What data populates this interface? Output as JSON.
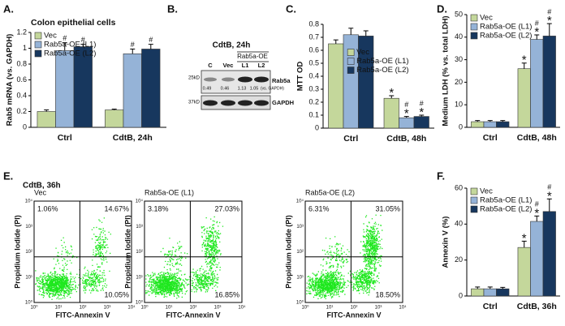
{
  "panel_labels": [
    "A.",
    "B.",
    "C.",
    "D.",
    "E.",
    "F."
  ],
  "chart_data": [
    {
      "type": "bar",
      "title": "Colon epithelial cells",
      "y_label": "Rab5 mRNA (vs. GAPDH)",
      "categories": [
        "Ctrl",
        "CdtB, 24h"
      ],
      "legend": "upper left",
      "ylim": [
        0,
        1.2
      ],
      "yticks": [
        0,
        0.2,
        0.4,
        0.6,
        0.8,
        1,
        1.2
      ],
      "series": [
        {
          "name": "Vec",
          "color": "#c4d79b",
          "values": [
            0.2,
            0.22
          ],
          "errors": [
            0.02,
            0.01
          ],
          "labels": [
            null,
            null
          ]
        },
        {
          "name": "Rab5a-OE (L1)",
          "color": "#95b3d7",
          "values": [
            0.97,
            0.93
          ],
          "errors": [
            0.1,
            0.06
          ],
          "labels": [
            [
              "#"
            ],
            [
              "#"
            ]
          ]
        },
        {
          "name": "Rab5a-OE (L2)",
          "color": "#17375e",
          "values": [
            1.02,
            0.99
          ],
          "errors": [
            0.03,
            0.06
          ],
          "labels": [
            [
              "#"
            ],
            [
              "#"
            ]
          ]
        }
      ]
    },
    {
      "type": "bar",
      "y_label": "MTT OD",
      "categories": [
        "Ctrl",
        "CdtB, 48h"
      ],
      "legend": "center right",
      "ylim": [
        0,
        0.8
      ],
      "yticks": [
        0,
        0.1,
        0.2,
        0.3,
        0.4,
        0.5,
        0.6,
        0.7,
        0.8
      ],
      "series": [
        {
          "name": "Vec",
          "color": "#c4d79b",
          "values": [
            0.65,
            0.23
          ],
          "errors": [
            0.03,
            0.02
          ],
          "labels": [
            null,
            [
              "*"
            ]
          ]
        },
        {
          "name": "Rab5a-OE (L1)",
          "color": "#95b3d7",
          "values": [
            0.72,
            0.08
          ],
          "errors": [
            0.05,
            0.01
          ],
          "labels": [
            null,
            [
              "#",
              "*"
            ]
          ]
        },
        {
          "name": "Rab5a-OE (L2)",
          "color": "#17375e",
          "values": [
            0.71,
            0.09
          ],
          "errors": [
            0.04,
            0.01
          ],
          "labels": [
            null,
            [
              "#",
              "*"
            ]
          ]
        }
      ]
    },
    {
      "type": "bar",
      "y_label": "Medium LDH (% vs. total LDH)",
      "categories": [
        "Ctrl",
        "CdtB, 48h"
      ],
      "legend": "upper left",
      "ylim": [
        0,
        50
      ],
      "yticks": [
        0,
        10,
        20,
        30,
        40,
        50
      ],
      "series": [
        {
          "name": "Vec",
          "color": "#c4d79b",
          "values": [
            2.5,
            26
          ],
          "errors": [
            0.5,
            2.5
          ],
          "labels": [
            null,
            [
              "*"
            ]
          ]
        },
        {
          "name": "Rab5a-OE (L1)",
          "color": "#95b3d7",
          "values": [
            2.5,
            39
          ],
          "errors": [
            0.5,
            2
          ],
          "labels": [
            null,
            [
              "#",
              "*"
            ]
          ]
        },
        {
          "name": "Rab5a-OE (L2)",
          "color": "#17375e",
          "values": [
            2.5,
            40.5
          ],
          "errors": [
            0.5,
            5.5
          ],
          "labels": [
            null,
            [
              "#",
              "*"
            ]
          ]
        }
      ]
    },
    {
      "type": "bar",
      "y_label": "Annexin V (%)",
      "categories": [
        "Ctrl",
        "CdtB, 36h"
      ],
      "legend": "upper left",
      "ylim": [
        0,
        60
      ],
      "yticks": [
        0,
        20,
        40,
        60
      ],
      "series": [
        {
          "name": "Vec",
          "color": "#c4d79b",
          "values": [
            4,
            27
          ],
          "errors": [
            1,
            3.5
          ],
          "labels": [
            null,
            [
              "*"
            ]
          ]
        },
        {
          "name": "Rab5a-OE (L1)",
          "color": "#95b3d7",
          "values": [
            4,
            41.5
          ],
          "errors": [
            1,
            3
          ],
          "labels": [
            null,
            [
              "#",
              "*"
            ]
          ]
        },
        {
          "name": "Rab5a-OE (L2)",
          "color": "#17375e",
          "values": [
            4,
            47
          ],
          "errors": [
            0.8,
            7
          ],
          "labels": [
            null,
            [
              "#",
              "*"
            ]
          ]
        }
      ]
    }
  ],
  "blot": {
    "title": "CdtB, 24h",
    "group": "Rab5a-OE",
    "lanes": [
      "C",
      "Vec",
      "L1",
      "L2"
    ],
    "markers": [
      "25kD",
      "37kD"
    ],
    "bands": [
      "Rab5a",
      "GAPDH"
    ],
    "ratios": [
      0.49,
      0.46,
      1.13,
      1.05
    ],
    "ratio_note": "(vs. GAPDH)"
  },
  "flow": {
    "title": "CdtB, 36h",
    "x_label": "FITC-Annexin V",
    "y_label": "Propidium Iodide (PI)",
    "ticks": [
      "10⁰",
      "10¹",
      "10²",
      "10³",
      "10⁴"
    ],
    "plots": [
      {
        "name": "Vec",
        "quadrants": [
          "1.06%",
          "14.67%",
          "10.05%"
        ]
      },
      {
        "name": "Rab5a-OE (L1)",
        "quadrants": [
          "3.18%",
          "27.03%",
          "16.85%"
        ]
      },
      {
        "name": "Rab5a-OE (L2)",
        "quadrants": [
          "6.31%",
          "31.05%",
          "18.50%"
        ]
      }
    ]
  }
}
